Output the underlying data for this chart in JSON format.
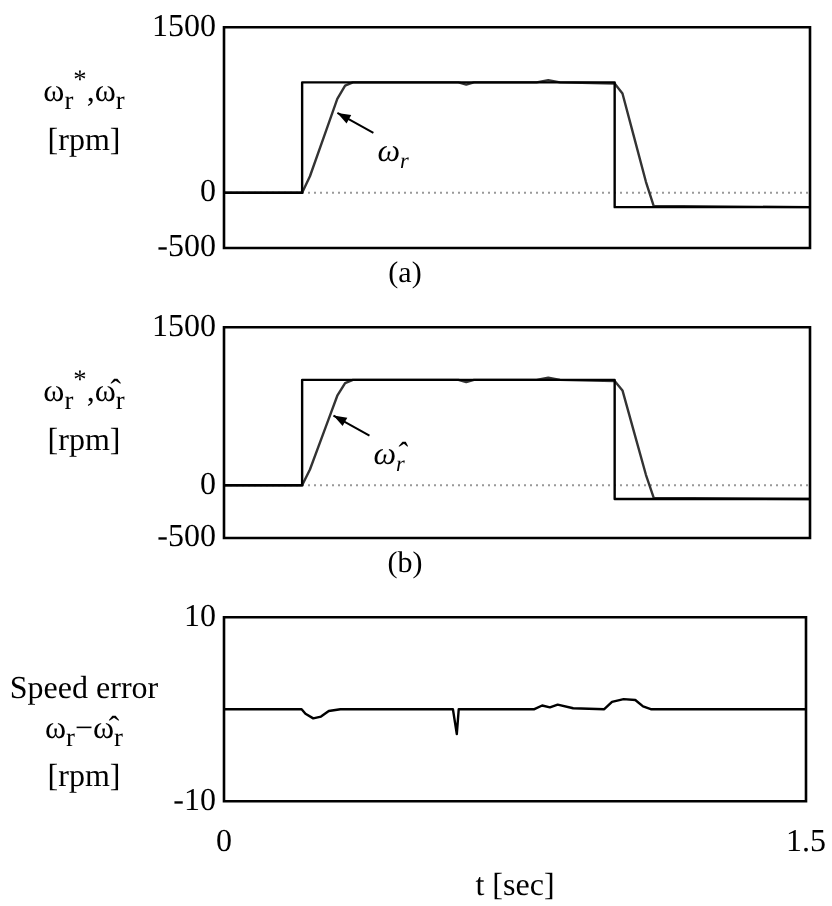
{
  "chart_data": [
    {
      "type": "line",
      "title": "(a)",
      "ylabel": "ω$_{r}$$^{*}$,ω$_{r}$ [rpm]",
      "xlim": [
        0,
        1.5
      ],
      "ylim": [
        -500,
        1500
      ],
      "yticks": [
        -500,
        0,
        1500
      ],
      "tick_labels": "y",
      "grid": false,
      "legend": false,
      "marker": "none",
      "line_style": "solid",
      "ref_lines": [
        {
          "axis": "y",
          "value": 0,
          "color": "#999999",
          "line_style": "dotted"
        }
      ],
      "annotations": [
        {
          "text": "ω$_{r}$",
          "x": 0.28,
          "y": 760
        }
      ],
      "series": [
        {
          "color": "#000000",
          "x": [
            0,
            0.2,
            0.2,
            1.0,
            1.0,
            1.5
          ],
          "values": [
            0,
            0,
            1000,
            1000,
            -130,
            -130
          ]
        },
        {
          "color": "#333333",
          "x": [
            0,
            0.2,
            0.22,
            0.26,
            0.29,
            0.31,
            0.33,
            0.36,
            0.6,
            0.62,
            0.64,
            0.8,
            0.83,
            0.86,
            1.0,
            1.02,
            1.05,
            1.08,
            1.1,
            1.5
          ],
          "values": [
            0,
            0,
            150,
            550,
            850,
            970,
            1000,
            1000,
            1000,
            980,
            1000,
            1000,
            1020,
            1000,
            990,
            900,
            500,
            100,
            -120,
            -130
          ]
        }
      ]
    },
    {
      "type": "line",
      "title": "(b)",
      "ylabel": "ω$_{r}$$^{*}$,ω̂$_{r}$ [rpm]",
      "xlim": [
        0,
        1.5
      ],
      "ylim": [
        -500,
        1500
      ],
      "yticks": [
        -500,
        0,
        1500
      ],
      "tick_labels": "y",
      "grid": false,
      "legend": false,
      "marker": "none",
      "line_style": "solid",
      "ref_lines": [
        {
          "axis": "y",
          "value": 0,
          "color": "#999999",
          "line_style": "dotted"
        }
      ],
      "annotations": [
        {
          "text": "ω̂$_{r}$",
          "x": 0.27,
          "y": 700
        }
      ],
      "series": [
        {
          "color": "#000000",
          "x": [
            0,
            0.2,
            0.2,
            1.0,
            1.0,
            1.5
          ],
          "values": [
            0,
            0,
            1000,
            1000,
            -130,
            -130
          ]
        },
        {
          "color": "#333333",
          "x": [
            0,
            0.2,
            0.22,
            0.26,
            0.29,
            0.31,
            0.33,
            0.36,
            0.6,
            0.62,
            0.64,
            0.8,
            0.83,
            0.86,
            1.0,
            1.02,
            1.05,
            1.08,
            1.1,
            1.5
          ],
          "values": [
            0,
            0,
            150,
            550,
            850,
            970,
            1000,
            1000,
            1000,
            980,
            1000,
            1000,
            1020,
            1000,
            990,
            900,
            500,
            100,
            -120,
            -130
          ]
        }
      ]
    },
    {
      "type": "line",
      "ylabel": "Speed error ω$_{r}$−ω̂$_{r}$ [rpm]",
      "xlabel": "t [sec]",
      "xlim": [
        0,
        1.5
      ],
      "xticks": [
        0,
        1.5
      ],
      "ylim": [
        -10,
        10
      ],
      "yticks": [
        -10,
        10
      ],
      "grid": false,
      "legend": false,
      "marker": "none",
      "line_style": "solid",
      "series": [
        {
          "color": "#000000",
          "x": [
            0,
            0.2,
            0.21,
            0.23,
            0.25,
            0.27,
            0.3,
            0.59,
            0.6,
            0.605,
            0.8,
            0.82,
            0.84,
            0.86,
            0.9,
            0.98,
            1.0,
            1.03,
            1.06,
            1.08,
            1.1,
            1.5
          ],
          "values": [
            0,
            0,
            -0.5,
            -1,
            -0.8,
            -0.2,
            0,
            0,
            -2.7,
            0,
            0,
            0.4,
            0.2,
            0.5,
            0.1,
            0,
            0.8,
            1.1,
            1.0,
            0.3,
            0,
            0
          ]
        }
      ]
    }
  ]
}
